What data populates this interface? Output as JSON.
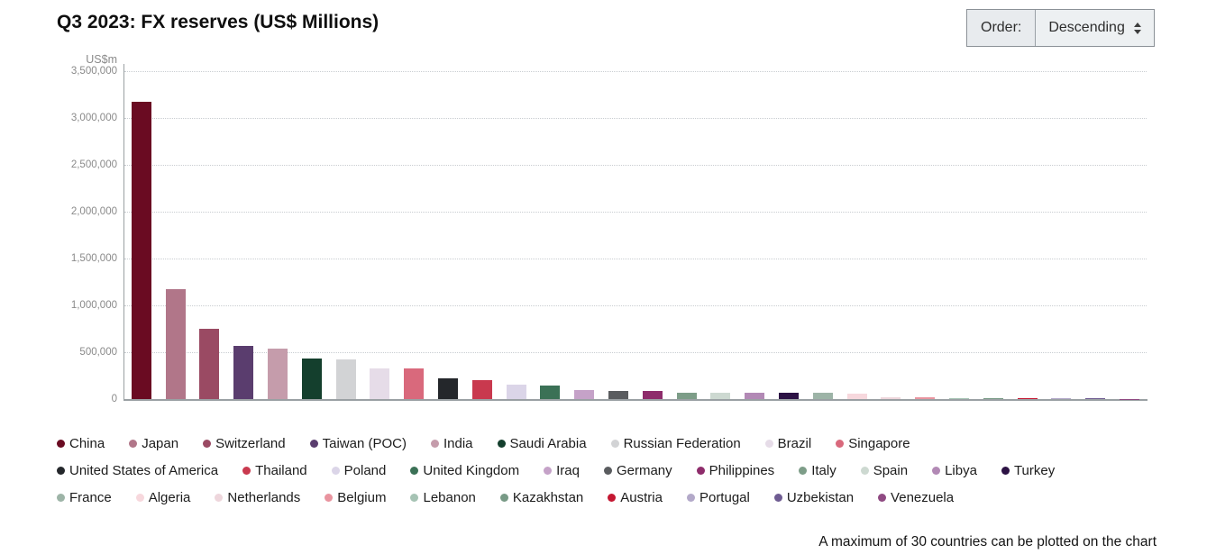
{
  "header": {
    "title": "Q3 2023: FX reserves (US$ Millions)"
  },
  "order_control": {
    "label": "Order:",
    "value": "Descending"
  },
  "footer": {
    "note": "A maximum of 30 countries can be plotted on the chart"
  },
  "chart_data": {
    "type": "bar",
    "title": "Q3 2023: FX reserves (US$ Millions)",
    "unit_label": "US$m",
    "xlabel": "",
    "ylabel": "US$m",
    "ylim": [
      0,
      3500000
    ],
    "ytick_values": [
      3500000,
      3000000,
      2500000,
      2000000,
      1500000,
      1000000,
      500000,
      0
    ],
    "ytick_labels": [
      "3,500,000",
      "3,000,000",
      "2,500,000",
      "2,000,000",
      "1,500,000",
      "1,000,000",
      "500,000",
      "0"
    ],
    "grid": "horizontal-dotted",
    "sort_order": "descending",
    "legend_position": "bottom",
    "legend_row_counts": [
      9,
      11,
      10
    ],
    "series": [
      {
        "name": "China",
        "value": 3170000,
        "color": "#6a0b22"
      },
      {
        "name": "Japan",
        "value": 1170000,
        "color": "#b17689"
      },
      {
        "name": "Switzerland",
        "value": 750000,
        "color": "#9a4a63"
      },
      {
        "name": "Taiwan (POC)",
        "value": 565000,
        "color": "#5a3d6e"
      },
      {
        "name": "India",
        "value": 540000,
        "color": "#c59cab"
      },
      {
        "name": "Saudi Arabia",
        "value": 430000,
        "color": "#143f2d"
      },
      {
        "name": "Russian Federation",
        "value": 420000,
        "color": "#d2d3d5"
      },
      {
        "name": "Brazil",
        "value": 330000,
        "color": "#e6dce8"
      },
      {
        "name": "Singapore",
        "value": 325000,
        "color": "#d9697c"
      },
      {
        "name": "United States of America",
        "value": 220000,
        "color": "#24272b"
      },
      {
        "name": "Thailand",
        "value": 200000,
        "color": "#c9394e"
      },
      {
        "name": "Poland",
        "value": 150000,
        "color": "#dbd5e8"
      },
      {
        "name": "United Kingdom",
        "value": 140000,
        "color": "#3b7156"
      },
      {
        "name": "Iraq",
        "value": 100000,
        "color": "#c5a2c8"
      },
      {
        "name": "Germany",
        "value": 86000,
        "color": "#5a5c5f"
      },
      {
        "name": "Philippines",
        "value": 82000,
        "color": "#8e2c6b"
      },
      {
        "name": "Italy",
        "value": 72000,
        "color": "#7d9d88"
      },
      {
        "name": "Spain",
        "value": 70000,
        "color": "#cdd9d1"
      },
      {
        "name": "Libya",
        "value": 69000,
        "color": "#b289b5"
      },
      {
        "name": "Turkey",
        "value": 67000,
        "color": "#2c1244"
      },
      {
        "name": "France",
        "value": 66000,
        "color": "#9db4a7"
      },
      {
        "name": "Algeria",
        "value": 56000,
        "color": "#f7d8dd"
      },
      {
        "name": "Netherlands",
        "value": 22000,
        "color": "#eed6dc"
      },
      {
        "name": "Belgium",
        "value": 19000,
        "color": "#e9949f"
      },
      {
        "name": "Lebanon",
        "value": 13000,
        "color": "#a6c3b4"
      },
      {
        "name": "Kazakhstan",
        "value": 9000,
        "color": "#789a86"
      },
      {
        "name": "Austria",
        "value": 8000,
        "color": "#c41732"
      },
      {
        "name": "Portugal",
        "value": 6000,
        "color": "#b3a9c9"
      },
      {
        "name": "Uzbekistan",
        "value": 5000,
        "color": "#6f5c92"
      },
      {
        "name": "Venezuela",
        "value": 4000,
        "color": "#8f4a82"
      }
    ]
  }
}
